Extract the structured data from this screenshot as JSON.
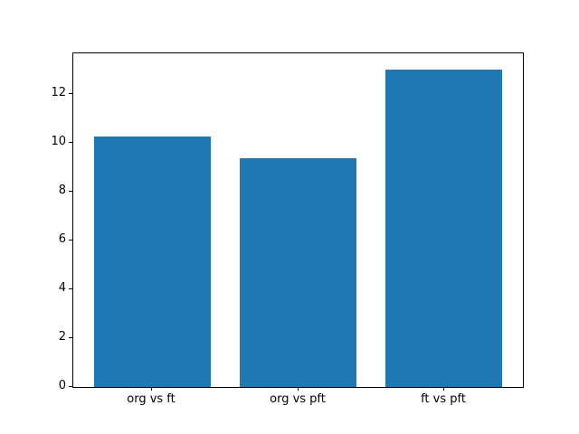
{
  "chart_data": {
    "type": "bar",
    "categories": [
      "org vs ft",
      "org vs pft",
      "ft vs pft"
    ],
    "values": [
      10.25,
      9.35,
      13.0
    ],
    "title": "",
    "xlabel": "",
    "ylabel": "",
    "ylim": [
      0,
      13.65
    ],
    "xlim": [
      -0.54,
      2.54
    ],
    "yticks": [
      0,
      2,
      4,
      6,
      8,
      10,
      12
    ],
    "bar_width": 0.8,
    "bar_color": "#1f77b4",
    "spine_color": "#000000",
    "background_color": "#ffffff",
    "grid": false,
    "legend": false
  }
}
